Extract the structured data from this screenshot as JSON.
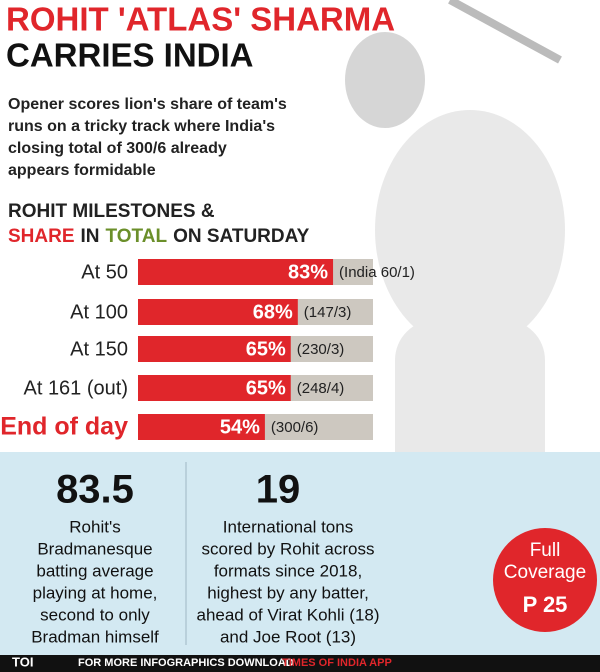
{
  "header": {
    "title_line1": "ROHIT 'ATLAS' SHARMA",
    "title_line2": "CARRIES INDIA",
    "subtitle_lines": [
      "Opener scores lion's share of team's",
      "runs on a tricky track where India's",
      "closing total of 300/6 already",
      "appears formidable"
    ]
  },
  "chart_data": {
    "type": "bar",
    "title_line1": "ROHIT MILESTONES &",
    "title_line2_parts": [
      {
        "text": "SHARE",
        "color": "#e0262b"
      },
      {
        "text": "IN",
        "color": "#222222"
      },
      {
        "text": "TOTAL",
        "color": "#6b8f2a"
      },
      {
        "text": "ON SATURDAY",
        "color": "#222222"
      }
    ],
    "categories": [
      "At 50",
      "At 100",
      "At 150",
      "At 161 (out)",
      "End of day"
    ],
    "values": [
      83,
      68,
      65,
      65,
      54
    ],
    "value_labels": [
      "83%",
      "68%",
      "65%",
      "65%",
      "54%"
    ],
    "notes": [
      "(India 60/1)",
      "(147/3)",
      "(230/3)",
      "(248/4)",
      "(300/6)"
    ],
    "color": "#e0262b",
    "track_color": "#cdc8c0",
    "xlim": [
      0,
      100
    ]
  },
  "stats": [
    {
      "value": "83.5",
      "lines": [
        "Rohit's",
        "Bradmanesque",
        "batting average",
        "playing at home,",
        "second to only",
        "Bradman himself"
      ]
    },
    {
      "value": "19",
      "lines": [
        "International tons",
        "scored by Rohit across",
        "formats since 2018,",
        "highest by any batter,",
        "ahead of Virat Kohli (18)",
        "and Joe Root (13)"
      ]
    }
  ],
  "badge": {
    "lines": [
      "Full",
      "Coverage"
    ],
    "page": "P 25"
  },
  "footer": {
    "brand": "TOI",
    "text": "FOR MORE INFOGRAPHICS DOWNLOAD",
    "app": "TIMES OF INDIA APP"
  }
}
